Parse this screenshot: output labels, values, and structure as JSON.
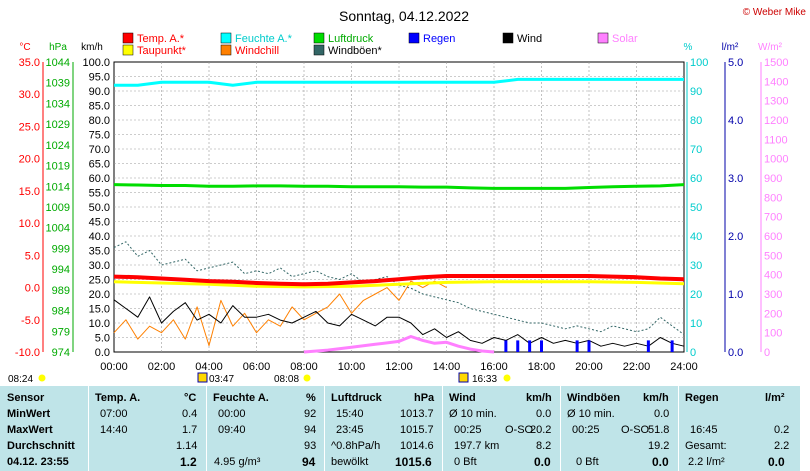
{
  "header": {
    "title": "Sonntag, 04.12.2022",
    "credit": "© Weber Mike"
  },
  "colors": {
    "temp": "#ff0000",
    "dewpoint": "#ffff00",
    "humidity": "#00ffff",
    "windchill": "#ff8000",
    "pressure": "#00dd00",
    "gust": "#336666",
    "rain": "#0000ff",
    "wind": "#000000",
    "solar": "#ff80ff",
    "table_bg": "#bfe4e8"
  },
  "legend": [
    {
      "label": "Temp. A.*",
      "color": "#ff0000",
      "label_color": "#ff0000"
    },
    {
      "label": "Feuchte A.*",
      "color": "#00ffff",
      "label_color": "#00cccc"
    },
    {
      "label": "Luftdruck",
      "color": "#00dd00",
      "label_color": "#00aa00"
    },
    {
      "label": "Regen",
      "color": "#0000ff",
      "label_color": "#0000ff"
    },
    {
      "label": "Wind",
      "color": "#000000",
      "label_color": "#000000"
    },
    {
      "label": "Solar",
      "color": "#ff80ff",
      "label_color": "#ff80ff"
    },
    {
      "label": "Taupunkt*",
      "color": "#ffff00",
      "label_color": "#ff0000"
    },
    {
      "label": "Windchill",
      "color": "#ff8000",
      "label_color": "#ff0000"
    },
    {
      "label": "Windböen*",
      "color": "#336666",
      "label_color": "#000000"
    }
  ],
  "axes": {
    "temp": {
      "unit": "°C",
      "ticks": [
        "35.0",
        "30.0",
        "25.0",
        "20.0",
        "15.0",
        "10.0",
        "5.0",
        "0.0",
        "-5.0",
        "-10.0"
      ]
    },
    "pressure": {
      "unit": "hPa",
      "ticks": [
        "1044",
        "1039",
        "1034",
        "1029",
        "1024",
        "1019",
        "1014",
        "1009",
        "1004",
        "999",
        "994",
        "989",
        "984",
        "979",
        "974"
      ]
    },
    "wind": {
      "unit": "km/h",
      "ticks": [
        "100.0",
        "95.0",
        "90.0",
        "85.0",
        "80.0",
        "75.0",
        "70.0",
        "65.0",
        "60.0",
        "55.0",
        "50.0",
        "45.0",
        "40.0",
        "35.0",
        "30.0",
        "25.0",
        "20.0",
        "15.0",
        "10.0",
        "5.0",
        "0.0"
      ]
    },
    "humidity": {
      "unit": "%",
      "ticks": [
        "100",
        "90",
        "80",
        "70",
        "60",
        "50",
        "40",
        "30",
        "20",
        "10",
        "0"
      ]
    },
    "rain": {
      "unit": "l/m²",
      "ticks": [
        "5.0",
        "4.0",
        "3.0",
        "2.0",
        "1.0",
        "0.0"
      ]
    },
    "solar": {
      "unit": "W/m²",
      "ticks": [
        "1500",
        "1400",
        "1300",
        "1200",
        "1100",
        "1000",
        "900",
        "800",
        "700",
        "600",
        "500",
        "400",
        "300",
        "200",
        "100",
        "0"
      ]
    },
    "x_ticks": [
      "00:00",
      "02:00",
      "04:00",
      "06:00",
      "08:00",
      "10:00",
      "12:00",
      "14:00",
      "16:00",
      "18:00",
      "20:00",
      "22:00",
      "24:00"
    ]
  },
  "sun": {
    "sunrise_label": "08:24",
    "sunset_label": "16:33",
    "moonrise_label": "03:47",
    "dawn_label": "08:08"
  },
  "chart_data": {
    "type": "line",
    "title": "Sonntag, 04.12.2022",
    "x_unit": "hours",
    "xlim": [
      0,
      24
    ],
    "series": [
      {
        "name": "Temp. A.*",
        "axis": "°C",
        "x": [
          0,
          1,
          2,
          3,
          4,
          5,
          6,
          7,
          8,
          9,
          10,
          11,
          12,
          13,
          14,
          15,
          16,
          17,
          18,
          19,
          20,
          21,
          22,
          23,
          24
        ],
        "values": [
          1.7,
          1.6,
          1.4,
          1.2,
          1.0,
          0.9,
          0.7,
          0.6,
          0.5,
          0.6,
          0.8,
          1.0,
          1.3,
          1.6,
          1.8,
          1.8,
          1.8,
          1.8,
          1.8,
          1.8,
          1.8,
          1.7,
          1.6,
          1.4,
          1.3
        ]
      },
      {
        "name": "Taupunkt*",
        "axis": "°C",
        "x": [
          0,
          2,
          4,
          6,
          8,
          10,
          12,
          14,
          16,
          18,
          20,
          22,
          24
        ],
        "values": [
          0.9,
          0.7,
          0.5,
          0.2,
          0.1,
          0.2,
          0.5,
          0.8,
          0.9,
          0.9,
          0.9,
          0.8,
          0.6
        ]
      },
      {
        "name": "Feuchte A.*",
        "axis": "%",
        "x": [
          0,
          1,
          2,
          3,
          4,
          5,
          6,
          7,
          8,
          9,
          10,
          11,
          12,
          13,
          14,
          15,
          16,
          17,
          18,
          19,
          20,
          21,
          22,
          23,
          24
        ],
        "values": [
          92,
          92,
          93,
          93,
          93,
          92,
          93,
          93,
          93,
          93,
          93,
          93,
          93,
          93,
          93,
          93,
          93,
          94,
          94,
          94,
          94,
          94,
          94,
          94,
          94
        ]
      },
      {
        "name": "Luftdruck",
        "axis": "hPa",
        "x": [
          0,
          1,
          2,
          3,
          4,
          5,
          6,
          7,
          8,
          9,
          10,
          11,
          12,
          13,
          14,
          15,
          16,
          17,
          18,
          19,
          20,
          21,
          22,
          23,
          24
        ],
        "values": [
          1014.4,
          1014.3,
          1014.2,
          1014.2,
          1014.0,
          1014.0,
          1014.1,
          1014.1,
          1014.0,
          1014.0,
          1013.9,
          1013.9,
          1013.9,
          1013.8,
          1013.8,
          1013.6,
          1013.5,
          1013.5,
          1013.5,
          1013.5,
          1013.7,
          1013.9,
          1014.0,
          1014.1,
          1014.4
        ]
      },
      {
        "name": "Wind",
        "axis": "km/h",
        "x": [
          0,
          0.5,
          1,
          1.5,
          2,
          2.5,
          3,
          3.5,
          4,
          4.5,
          5,
          5.5,
          6,
          6.5,
          7,
          7.5,
          8,
          8.5,
          9,
          9.5,
          10,
          10.5,
          11,
          11.5,
          12,
          12.5,
          13,
          13.5,
          14,
          14.5,
          15,
          15.5,
          16,
          16.5,
          17,
          17.5,
          18,
          18.5,
          19,
          19.5,
          20,
          20.5,
          21,
          21.5,
          22,
          22.5,
          23,
          23.5,
          24
        ],
        "values": [
          18,
          15,
          12,
          19,
          10,
          14,
          17,
          11,
          13,
          10,
          16,
          12,
          12,
          13,
          11,
          10,
          12,
          14,
          10,
          9,
          13,
          11,
          9,
          12,
          12,
          10,
          6,
          8,
          5,
          7,
          4,
          3,
          5,
          4,
          6,
          3,
          5,
          3,
          4,
          3,
          4,
          2,
          3,
          2,
          3,
          2,
          5,
          3,
          2
        ]
      },
      {
        "name": "Windböen*",
        "axis": "km/h",
        "x": [
          0,
          0.5,
          1,
          1.5,
          2,
          2.5,
          3,
          3.5,
          4,
          4.5,
          5,
          5.5,
          6,
          6.5,
          7,
          7.5,
          8,
          8.5,
          9,
          9.5,
          10,
          10.5,
          11,
          11.5,
          12,
          12.5,
          13,
          13.5,
          14,
          14.5,
          15,
          15.5,
          16,
          16.5,
          17,
          17.5,
          18,
          18.5,
          19,
          19.5,
          20,
          20.5,
          21,
          21.5,
          22,
          22.5,
          23,
          23.5,
          24
        ],
        "values": [
          36,
          38,
          33,
          35,
          30,
          31,
          32,
          28,
          29,
          30,
          31,
          27,
          28,
          27,
          29,
          26,
          27,
          28,
          26,
          25,
          27,
          24,
          25,
          26,
          23,
          22,
          20,
          19,
          18,
          17,
          15,
          14,
          13,
          12,
          11,
          10,
          10,
          9,
          8,
          9,
          8,
          7,
          9,
          8,
          7,
          8,
          12,
          9,
          6
        ]
      },
      {
        "name": "Windchill",
        "axis": "°C",
        "x": [
          0,
          0.5,
          1,
          1.5,
          2,
          2.5,
          3,
          3.5,
          4,
          4.5,
          5,
          5.5,
          6,
          6.5,
          7,
          7.5,
          8,
          8.5,
          9,
          9.5,
          10,
          10.5,
          11,
          11.5,
          12,
          12.5,
          13,
          13.5,
          14
        ],
        "values": [
          -7,
          -5,
          -8,
          -6,
          -7,
          -5,
          -8,
          -3,
          -9,
          -2,
          -6,
          -4,
          -7,
          -5,
          -6,
          -3,
          -5,
          -4,
          -3,
          -1,
          -4,
          -2,
          -1,
          0,
          -2,
          1,
          0,
          1,
          0
        ]
      },
      {
        "name": "Solar",
        "axis": "W/m²",
        "x": [
          8,
          9,
          10,
          11,
          12,
          12.5,
          13,
          13.5,
          14,
          14.5,
          15,
          15.5,
          16
        ],
        "values": [
          0,
          10,
          25,
          40,
          55,
          80,
          60,
          45,
          50,
          30,
          15,
          5,
          0
        ]
      },
      {
        "name": "Regen",
        "axis": "l/m²",
        "x": [
          16.5,
          17,
          17.5,
          18,
          19.5,
          20,
          22.5,
          23.5
        ],
        "values": [
          0.2,
          0.2,
          0.2,
          0.2,
          0.2,
          0.2,
          0.2,
          0.2
        ]
      }
    ]
  },
  "table": {
    "col_sensor": {
      "header": "Sensor",
      "rows": [
        "MinWert",
        "MaxWert",
        "Durchschnitt",
        "04.12. 23:55"
      ]
    },
    "col_temp": {
      "header": "Temp. A.",
      "unit": "°C",
      "rows": [
        [
          "07:00",
          "0.4"
        ],
        [
          "14:40",
          "1.7"
        ],
        [
          "",
          "1.14"
        ],
        [
          "",
          "1.2"
        ]
      ]
    },
    "col_hum": {
      "header": "Feuchte A.",
      "unit": "%",
      "rows": [
        [
          "00:00",
          "92"
        ],
        [
          "09:40",
          "94"
        ],
        [
          "",
          "93"
        ],
        [
          "4.95 g/m³",
          "94"
        ]
      ]
    },
    "col_press": {
      "header": "Luftdruck",
      "unit": "hPa",
      "rows": [
        [
          "15:40",
          "1013.7"
        ],
        [
          "23:45",
          "1015.7"
        ],
        [
          "^0.8hPa/h",
          "1014.6"
        ],
        [
          "bewölkt",
          "1015.6"
        ]
      ]
    },
    "col_wind": {
      "header": "Wind",
      "unit": "km/h",
      "rows": [
        [
          "Ø 10 min.",
          "",
          "0.0"
        ],
        [
          "00:25",
          "O-SO",
          "20.2"
        ],
        [
          "197.7 km",
          "",
          "8.2"
        ],
        [
          "0 Bft",
          "",
          "0.0"
        ]
      ]
    },
    "col_gust": {
      "header": "Windböen",
      "unit": "km/h",
      "rows": [
        [
          "Ø 10 min.",
          "",
          "0.0"
        ],
        [
          "00:25",
          "O-SO",
          "51.8"
        ],
        [
          "",
          "",
          "19.2"
        ],
        [
          "0 Bft",
          "",
          "0.0"
        ]
      ]
    },
    "col_rain": {
      "header": "Regen",
      "unit": "l/m²",
      "rows": [
        [
          "",
          ""
        ],
        [
          "16:45",
          "0.2"
        ],
        [
          "Gesamt:",
          "2.2"
        ],
        [
          "2.2 l/m²",
          "0.0"
        ]
      ]
    }
  }
}
